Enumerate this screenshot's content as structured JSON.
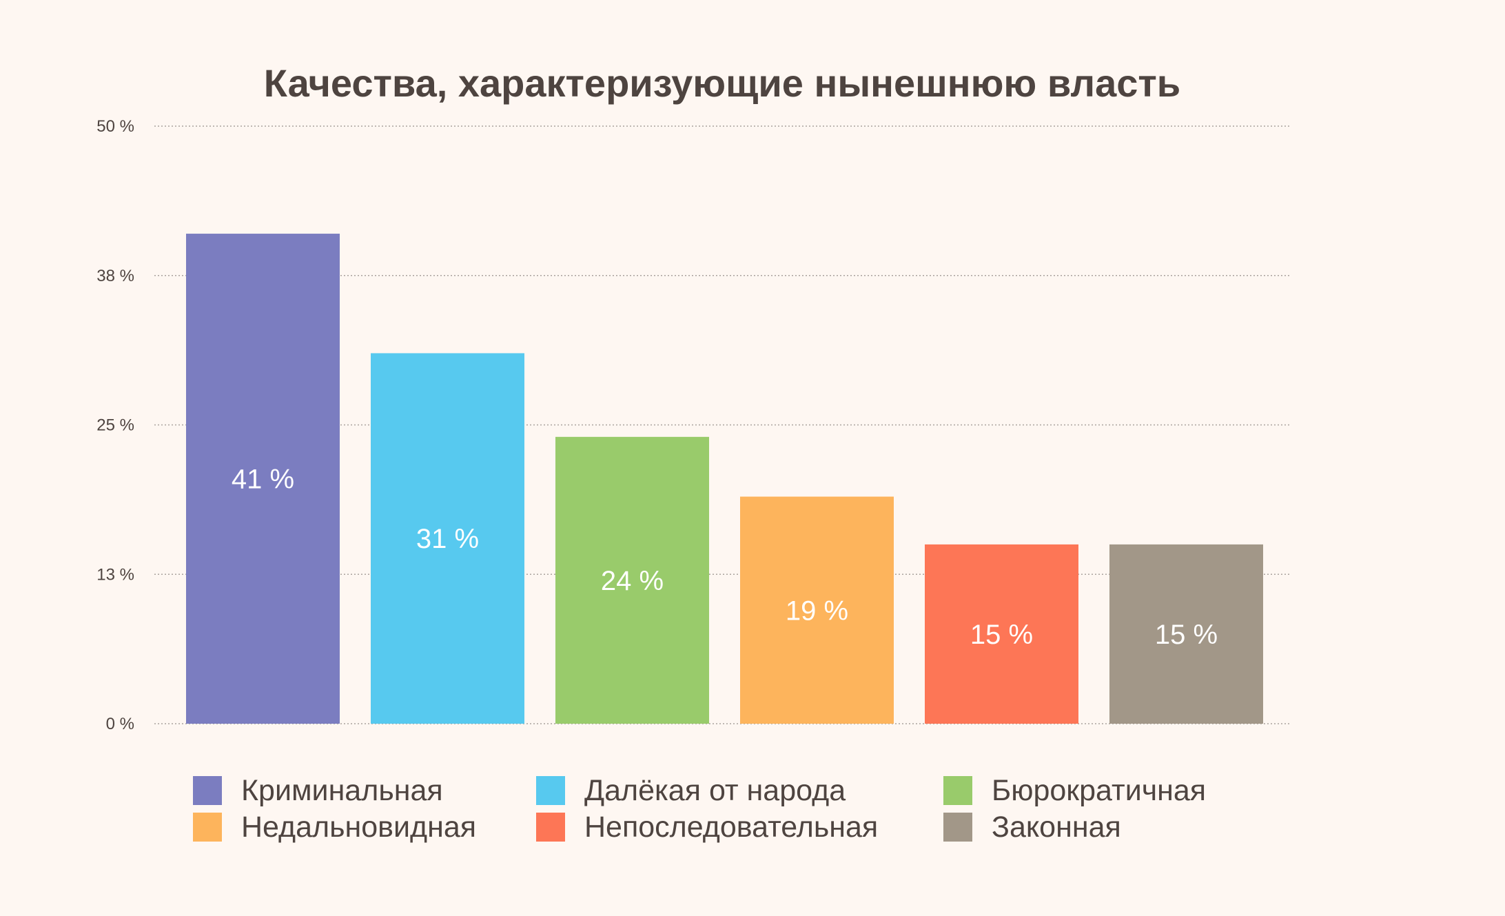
{
  "chart_data": {
    "type": "bar",
    "title": "Качества, характеризующие нынешнюю власть",
    "xlabel": "",
    "ylabel": "",
    "ylim": [
      0,
      50
    ],
    "yticks": [
      0,
      13,
      25,
      38,
      50
    ],
    "ytick_labels": [
      "0 %",
      "13 %",
      "25 %",
      "38 %",
      "50 %"
    ],
    "grid": true,
    "legend_position": "bottom",
    "categories": [
      "Криминальная",
      "Далёкая от народа",
      "Бюрократичная",
      "Недальновидная",
      "Непоследовательная",
      "Законная"
    ],
    "values": [
      41,
      31,
      24,
      19,
      15,
      15
    ],
    "data_labels": [
      "41 %",
      "31 %",
      "24 %",
      "19 %",
      "15 %",
      "15 %"
    ],
    "colors": [
      "#7b7dc0",
      "#57c9ef",
      "#99cb6b",
      "#fdb45c",
      "#fd7656",
      "#a29788"
    ]
  },
  "legend_items": [
    {
      "label": "Криминальная",
      "color": "#7b7dc0"
    },
    {
      "label": "Далёкая от народа",
      "color": "#57c9ef"
    },
    {
      "label": "Бюрократичная",
      "color": "#99cb6b"
    },
    {
      "label": "Недальновидная",
      "color": "#fdb45c"
    },
    {
      "label": "Непоследовательная",
      "color": "#fd7656"
    },
    {
      "label": "Законная",
      "color": "#a29788"
    }
  ]
}
